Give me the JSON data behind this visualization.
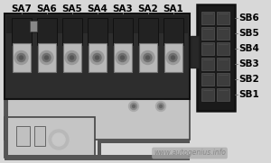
{
  "bg_color": "#d8d8d8",
  "sa_labels": [
    "SA7",
    "SA6",
    "SA5",
    "SA4",
    "SA3",
    "SA2",
    "SA1"
  ],
  "sb_labels": [
    "SB6",
    "SB5",
    "SB4",
    "SB3",
    "SB2",
    "SB1"
  ],
  "watermark": "www.autogenius.info",
  "fuse_box_color": "#2d2d2d",
  "fuse_body_dark": "#252525",
  "fuse_terminal_color": "#b8b8b8",
  "fuse_terminal_inner": "#888888",
  "connector_color": "#1a1a1a",
  "connector_slot_color": "#3a3a3a",
  "base_plate_color": "#c5c5c5",
  "base_dark": "#555555",
  "label_fontsize": 7.5,
  "watermark_color": "#888888",
  "watermark_bg": "#aaaaaa",
  "line_color": "#777777"
}
